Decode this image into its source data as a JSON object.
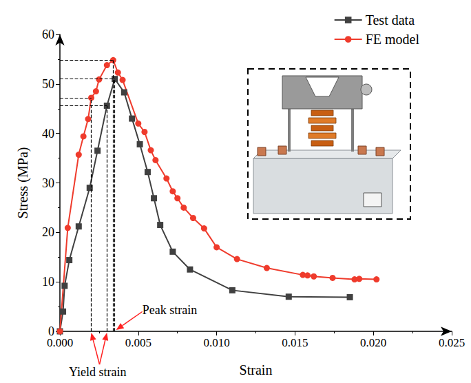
{
  "chart_data": {
    "type": "line",
    "x_label": "Strain",
    "y_label": "Stress (MPa)",
    "xlim": [
      0,
      0.025
    ],
    "xticks": [
      {
        "value": 0,
        "label": "0.000"
      },
      {
        "value": 0.005,
        "label": "0.005"
      },
      {
        "value": 0.01,
        "label": "0.010"
      },
      {
        "value": 0.015,
        "label": "0.015"
      },
      {
        "value": 0.02,
        "label": "0.020"
      },
      {
        "value": 0.025,
        "label": "0.025"
      }
    ],
    "ylim": [
      0,
      60
    ],
    "yticks": [
      0,
      10,
      20,
      30,
      40,
      50,
      60
    ],
    "grid": false,
    "legend": "top-right",
    "series": [
      {
        "name": "Test data",
        "color": "#404040",
        "marker": "square",
        "line_style": "solid",
        "x": [
          0,
          0.0002,
          0.0003,
          0.0006,
          0.0012,
          0.0019,
          0.0024,
          0.003,
          0.0035,
          0.0041,
          0.0046,
          0.0051,
          0.0056,
          0.006,
          0.0064,
          0.0072,
          0.0083,
          0.011,
          0.0146,
          0.0185
        ],
        "values": [
          0,
          4,
          9.2,
          14.4,
          21.2,
          29,
          36.5,
          45.6,
          51,
          48.3,
          43,
          37.8,
          32.2,
          26.9,
          21.5,
          16.1,
          12.5,
          8.3,
          7.0,
          6.9
        ]
      },
      {
        "name": "FE model",
        "color": "#ef3b2c",
        "marker": "circle",
        "line_style": "solid",
        "x": [
          0,
          0.0005,
          0.0012,
          0.0015,
          0.0018,
          0.002,
          0.0023,
          0.0025,
          0.003,
          0.0034,
          0.0037,
          0.004,
          0.005,
          0.0054,
          0.0058,
          0.0061,
          0.0068,
          0.0072,
          0.0075,
          0.0079,
          0.0085,
          0.0092,
          0.01,
          0.0113,
          0.0132,
          0.0155,
          0.0158,
          0.0162,
          0.0174,
          0.0188,
          0.0191,
          0.0202
        ],
        "values": [
          0,
          20.9,
          35.7,
          39.4,
          42.9,
          47.2,
          48.5,
          50.9,
          53.8,
          54.8,
          52.3,
          50.8,
          42.0,
          40.3,
          36.6,
          34.6,
          30.9,
          28.3,
          26.9,
          25.0,
          22.9,
          20.8,
          17.0,
          14.6,
          12.8,
          11.4,
          11.3,
          11.1,
          10.8,
          10.5,
          10.6,
          10.5
        ]
      }
    ],
    "annotations": [
      {
        "text": "Yield strain",
        "points": [
          [
            0.002,
            47.2
          ],
          [
            0.003,
            45.6
          ]
        ]
      },
      {
        "text": "Peak strain",
        "points": [
          [
            0.0034,
            54.8
          ],
          [
            0.0035,
            51
          ]
        ]
      }
    ]
  }
}
